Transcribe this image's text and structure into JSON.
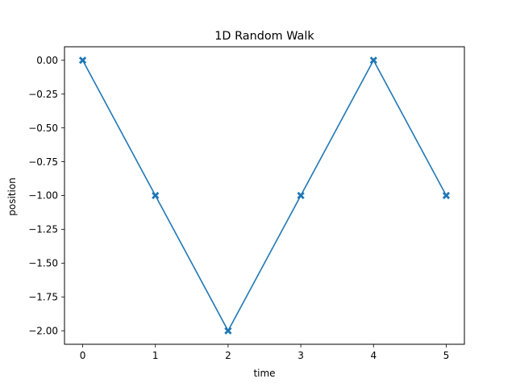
{
  "chart_data": {
    "type": "line",
    "title": "1D Random Walk",
    "xlabel": "time",
    "ylabel": "position",
    "xlim": [
      -0.25,
      5.25
    ],
    "ylim": [
      -2.1,
      0.1
    ],
    "xticks": [
      0,
      1,
      2,
      3,
      4,
      5
    ],
    "xtick_labels": [
      "0",
      "1",
      "2",
      "3",
      "4",
      "5"
    ],
    "yticks": [
      0,
      -0.25,
      -0.5,
      -0.75,
      -1.0,
      -1.25,
      -1.5,
      -1.75,
      -2.0
    ],
    "ytick_labels": [
      "0.00",
      "−0.25",
      "−0.50",
      "−0.75",
      "−1.00",
      "−1.25",
      "−1.50",
      "−1.75",
      "−2.00"
    ],
    "grid": false,
    "series": [
      {
        "x": [
          0,
          1,
          2,
          3,
          4,
          5
        ],
        "y": [
          0,
          -1,
          -2,
          -1,
          0,
          -1
        ],
        "color": "#1f77b4",
        "marker": "x-filled"
      }
    ]
  }
}
